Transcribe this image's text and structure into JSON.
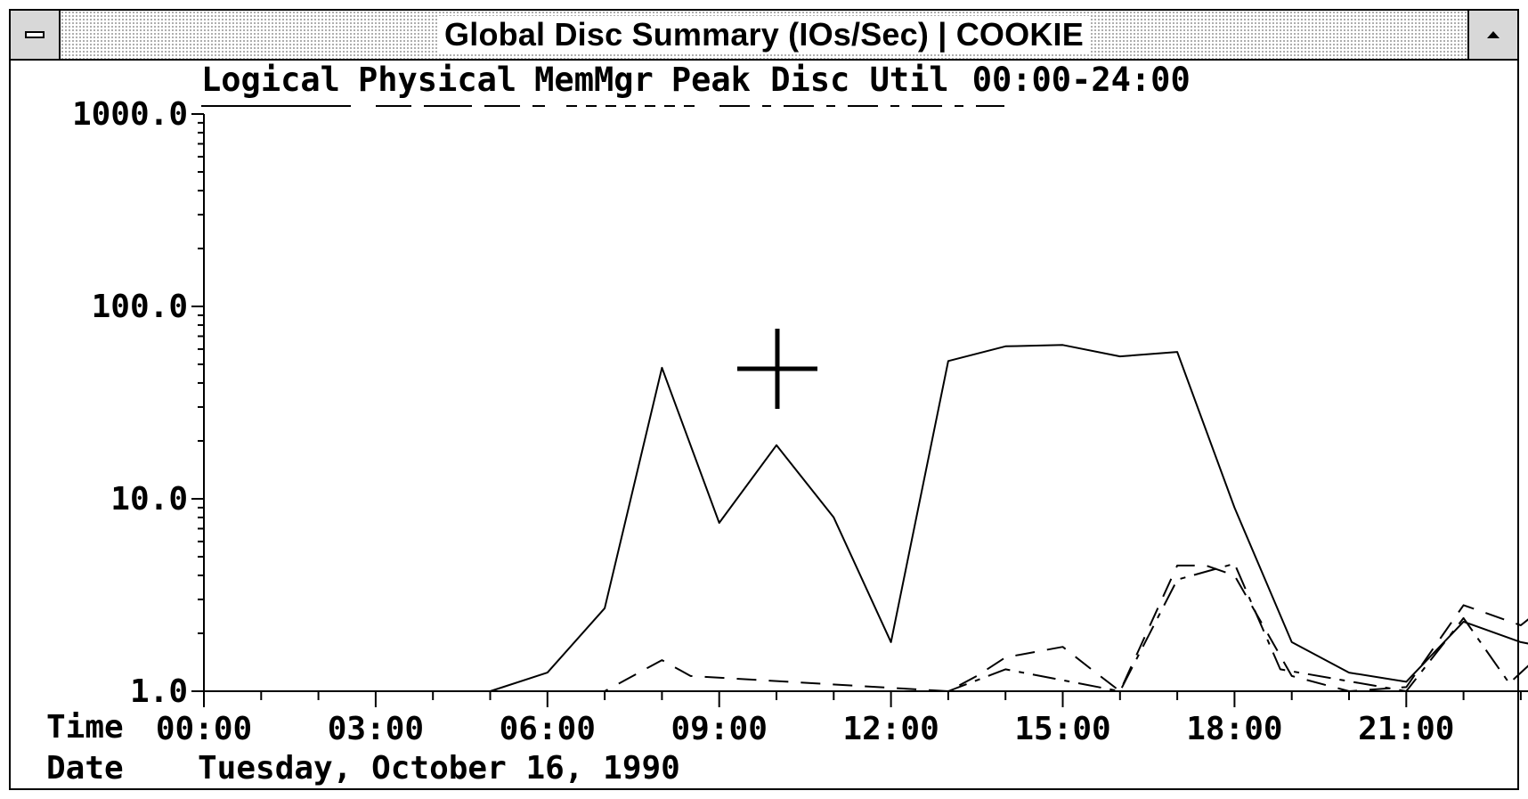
{
  "window": {
    "title": "Global Disc Summary (IOs/Sec) | COOKIE"
  },
  "legend": {
    "items": [
      "Logical",
      "Physical",
      "MemMgr",
      "Peak Disc Util"
    ],
    "range": "00:00-24:00"
  },
  "footer": {
    "time_label": "Time",
    "date_label": "Date",
    "date_value": "Tuesday, October 16, 1990"
  },
  "chart_data": {
    "type": "line",
    "yscale": "log",
    "ylim": [
      1,
      1000
    ],
    "yticks": [
      "1.0",
      "10.0",
      "100.0",
      "1000.0"
    ],
    "xticks": [
      "00:00",
      "03:00",
      "06:00",
      "09:00",
      "12:00",
      "15:00",
      "18:00",
      "21:00"
    ],
    "xlim": [
      0,
      23.9
    ],
    "series": [
      {
        "name": "Logical",
        "style": "solid",
        "points": [
          [
            0,
            1.0
          ],
          [
            5,
            1.0
          ],
          [
            6,
            1.25
          ],
          [
            7,
            2.7
          ],
          [
            8,
            48
          ],
          [
            9,
            7.5
          ],
          [
            10,
            19
          ],
          [
            11,
            8
          ],
          [
            12,
            1.8
          ],
          [
            13,
            52
          ],
          [
            14,
            62
          ],
          [
            15,
            63
          ],
          [
            16,
            55
          ],
          [
            17,
            58
          ],
          [
            18,
            9
          ],
          [
            19,
            1.8
          ],
          [
            20,
            1.25
          ],
          [
            21,
            1.12
          ],
          [
            22,
            2.3
          ],
          [
            23,
            1.8
          ],
          [
            23.9,
            1.6
          ]
        ]
      },
      {
        "name": "Physical",
        "style": "dash",
        "points": [
          [
            0,
            1.0
          ],
          [
            7,
            1.0
          ],
          [
            8,
            1.45
          ],
          [
            8.5,
            1.2
          ],
          [
            13,
            1.0
          ],
          [
            13.5,
            1.2
          ],
          [
            14,
            1.5
          ],
          [
            15,
            1.7
          ],
          [
            15.5,
            1.3
          ],
          [
            16,
            1.0
          ],
          [
            17,
            4.5
          ],
          [
            17.5,
            4.5
          ],
          [
            18,
            4.0
          ],
          [
            19,
            1.2
          ],
          [
            20,
            1.0
          ],
          [
            21,
            1.05
          ],
          [
            22,
            2.8
          ],
          [
            23,
            2.2
          ],
          [
            23.9,
            3.6
          ]
        ]
      },
      {
        "name": "MemMgr",
        "style": "dot",
        "points": [
          [
            0,
            1.0
          ],
          [
            23.9,
            1.0
          ]
        ]
      },
      {
        "name": "Peak Disc Util",
        "style": "dashdot",
        "points": [
          [
            0,
            1.0
          ],
          [
            13,
            1.0
          ],
          [
            14,
            1.3
          ],
          [
            16,
            1.0
          ],
          [
            17,
            3.8
          ],
          [
            18,
            4.6
          ],
          [
            18.8,
            1.3
          ],
          [
            21,
            1.0
          ],
          [
            22,
            2.4
          ],
          [
            22.8,
            1.1
          ],
          [
            23.9,
            2.2
          ]
        ]
      }
    ]
  }
}
